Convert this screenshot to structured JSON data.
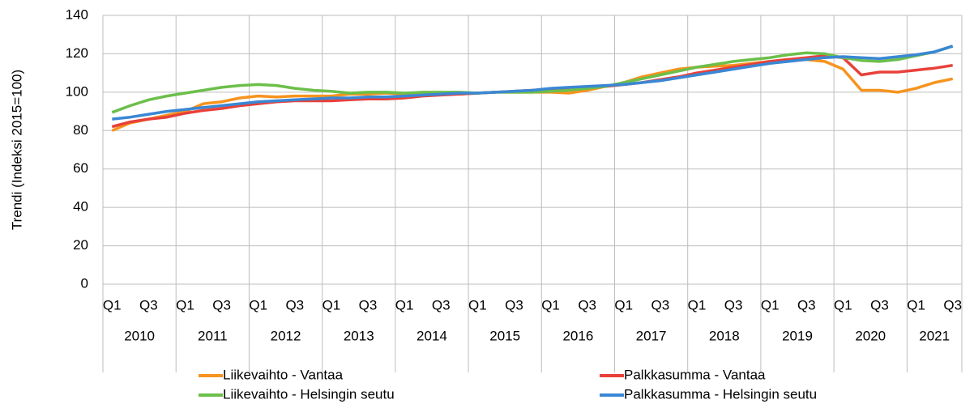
{
  "chart_data": {
    "type": "line",
    "y_label": "Trendi (Indeksi 2015=100)",
    "categories": [
      "Q1",
      null,
      "Q3",
      null,
      "Q1",
      null,
      "Q3",
      null,
      "Q1",
      null,
      "Q3",
      null,
      "Q1",
      null,
      "Q3",
      null,
      "Q1",
      null,
      "Q3",
      null,
      "Q1",
      null,
      "Q3",
      null,
      "Q1",
      null,
      "Q3",
      null,
      "Q1",
      null,
      "Q3",
      null,
      "Q1",
      null,
      "Q3",
      null,
      "Q1",
      null,
      "Q3",
      null,
      "Q1",
      null,
      "Q3",
      null,
      "Q1",
      null,
      "Q3"
    ],
    "groups": [
      "2010",
      "2011",
      "2012",
      "2013",
      "2014",
      "2015",
      "2016",
      "2017",
      "2018",
      "2019",
      "2020",
      "2021"
    ],
    "ylim": [
      0,
      140
    ],
    "yticks": [
      0,
      20,
      40,
      60,
      80,
      100,
      120,
      140
    ],
    "grid": true,
    "series": [
      {
        "name": "Liikevaihto - Vantaa",
        "color": "#f7931e",
        "values": [
          80,
          84,
          86,
          88,
          90,
          94,
          95,
          97,
          98,
          97.5,
          98,
          98,
          98,
          99,
          99,
          99.5,
          99,
          99.5,
          99,
          99,
          99.5,
          100,
          100,
          100,
          100,
          99.5,
          101,
          103,
          105,
          108,
          110,
          112,
          113,
          113.5,
          114,
          115,
          116,
          117,
          117,
          116,
          112,
          101,
          101,
          100,
          102,
          105,
          107
        ]
      },
      {
        "name": "Palkkasumma - Vantaa",
        "color": "#e8413a",
        "values": [
          82,
          84.5,
          86,
          87,
          89,
          90.5,
          91.5,
          93,
          94,
          95,
          95.5,
          95.5,
          95.5,
          96,
          96.5,
          96.5,
          97,
          98,
          98.5,
          99,
          99.5,
          100,
          100.5,
          101,
          101.5,
          102,
          102.5,
          103,
          104,
          105,
          106.5,
          108,
          110,
          111.5,
          113,
          114.5,
          116,
          117,
          118,
          119,
          118,
          109,
          110.5,
          110.5,
          111.5,
          112.5,
          114
        ]
      },
      {
        "name": "Liikevaihto - Helsingin seutu",
        "color": "#6cbf4a",
        "values": [
          89.5,
          93,
          96,
          98,
          99.5,
          101,
          102.5,
          103.5,
          104,
          103.5,
          102,
          101,
          100.5,
          99.5,
          100,
          100,
          99.5,
          100,
          100,
          100,
          99.5,
          100,
          100,
          100,
          100.5,
          101,
          102,
          103,
          105,
          107,
          109,
          111,
          113,
          114.5,
          116,
          117,
          118,
          119.5,
          120.5,
          120,
          118,
          116.5,
          116,
          117,
          119,
          121,
          124
        ]
      },
      {
        "name": "Palkkasumma - Helsingin seutu",
        "color": "#3a87d4",
        "values": [
          86,
          87,
          88.5,
          90,
          91,
          92,
          93,
          94,
          95,
          95.5,
          96,
          96.5,
          97,
          97,
          97.5,
          97.5,
          98,
          98.5,
          99,
          99.5,
          99.5,
          100,
          100.5,
          101,
          102,
          102.5,
          103,
          103.5,
          104,
          105,
          106,
          107.5,
          109,
          110.5,
          112,
          113.5,
          115,
          116,
          117,
          118,
          118.5,
          118,
          117.5,
          118.5,
          119.5,
          121,
          124
        ]
      }
    ]
  }
}
